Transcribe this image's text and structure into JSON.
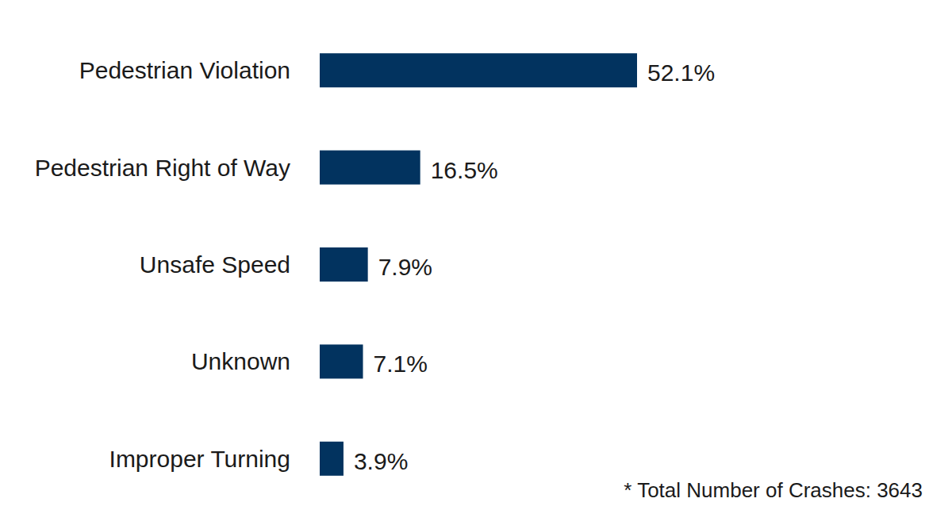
{
  "chart_data": {
    "type": "bar",
    "orientation": "horizontal",
    "categories": [
      "Pedestrian Violation",
      "Pedestrian Right of Way",
      "Unsafe Speed",
      "Unknown",
      "Improper Turning"
    ],
    "values": [
      52.1,
      16.5,
      7.9,
      7.1,
      3.9
    ],
    "value_labels": [
      "52.1%",
      "16.5%",
      "7.9%",
      "7.1%",
      "3.9%"
    ],
    "color": "#02335f",
    "xlim": [
      0,
      52.1
    ],
    "grid": false,
    "data_labels": true,
    "tick_labels": "y",
    "annotations": [
      "* Total Number of Crashes: 3643"
    ]
  }
}
